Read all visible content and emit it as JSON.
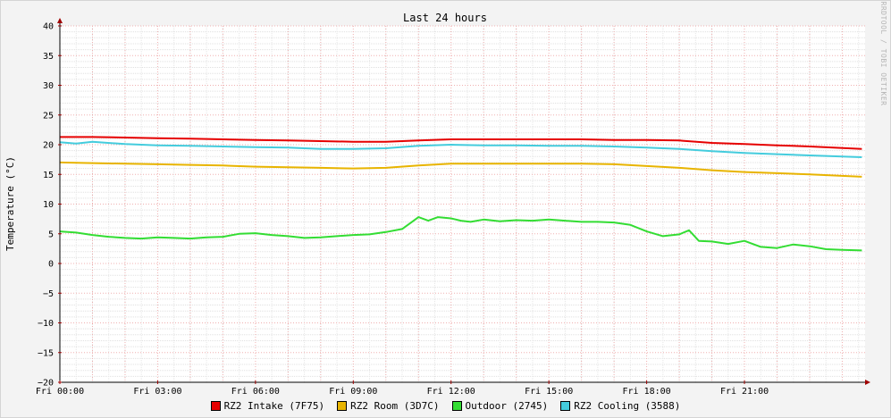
{
  "chart_data": {
    "type": "line",
    "title": "Last 24 hours",
    "ylabel": "Temperature (°C)",
    "watermark": "RRDTOOL / TOBI OETIKER",
    "ylim": [
      -20,
      40
    ],
    "y_ticks": [
      40,
      35,
      30,
      25,
      20,
      15,
      10,
      5,
      0,
      -5,
      -10,
      -15,
      -20
    ],
    "y_tick_labels": [
      "40",
      "35",
      "30",
      "25",
      "20",
      "15",
      "10",
      "5",
      "0",
      "−5",
      "−10",
      "−15",
      "−20"
    ],
    "x_range_hours": [
      0,
      24.7
    ],
    "x_ticks": [
      0,
      3,
      6,
      9,
      12,
      15,
      18,
      21
    ],
    "x_tick_labels": [
      "Fri 00:00",
      "Fri 03:00",
      "Fri 06:00",
      "Fri 09:00",
      "Fri 12:00",
      "Fri 15:00",
      "Fri 18:00",
      "Fri 21:00"
    ],
    "grid": true,
    "legend_position": "bottom",
    "series": [
      {
        "name": "RZ2 Intake (7F75)",
        "color": "#e60000",
        "x": [
          0,
          1,
          2,
          3,
          4,
          5,
          6,
          7,
          8,
          9,
          10,
          11,
          12,
          13,
          14,
          15,
          16,
          17,
          18,
          19,
          20,
          21,
          22,
          23,
          24.6
        ],
        "y": [
          21.3,
          21.3,
          21.2,
          21.1,
          21.0,
          20.9,
          20.8,
          20.7,
          20.6,
          20.5,
          20.5,
          20.7,
          20.9,
          20.9,
          20.9,
          20.9,
          20.9,
          20.8,
          20.8,
          20.7,
          20.3,
          20.1,
          19.9,
          19.7,
          19.3
        ]
      },
      {
        "name": "RZ2 Room (3D7C)",
        "color": "#e8b400",
        "x": [
          0,
          1,
          2,
          3,
          4,
          5,
          6,
          7,
          8,
          9,
          10,
          11,
          12,
          13,
          14,
          15,
          16,
          17,
          18,
          19,
          20,
          21,
          22,
          23,
          24.6
        ],
        "y": [
          17.0,
          16.9,
          16.8,
          16.7,
          16.6,
          16.5,
          16.3,
          16.2,
          16.1,
          16.0,
          16.1,
          16.5,
          16.8,
          16.8,
          16.8,
          16.8,
          16.8,
          16.7,
          16.4,
          16.1,
          15.7,
          15.4,
          15.2,
          15.0,
          14.6
        ]
      },
      {
        "name": "Outdoor (2745)",
        "color": "#33dd33",
        "x": [
          0,
          0.5,
          1,
          1.5,
          2,
          2.5,
          3,
          3.5,
          4,
          4.5,
          5,
          5.5,
          6,
          6.5,
          7,
          7.5,
          8,
          8.5,
          9,
          9.5,
          10,
          10.5,
          10.8,
          11,
          11.3,
          11.6,
          12,
          12.3,
          12.6,
          13,
          13.5,
          14,
          14.5,
          15,
          15.5,
          16,
          16.5,
          17,
          17.5,
          18,
          18.5,
          19,
          19.3,
          19.6,
          20,
          20.5,
          21,
          21.5,
          22,
          22.5,
          23,
          23.5,
          24,
          24.6
        ],
        "y": [
          5.4,
          5.2,
          4.8,
          4.5,
          4.3,
          4.2,
          4.4,
          4.3,
          4.2,
          4.4,
          4.5,
          5.0,
          5.1,
          4.8,
          4.6,
          4.3,
          4.4,
          4.6,
          4.8,
          4.9,
          5.3,
          5.8,
          7.0,
          7.8,
          7.2,
          7.8,
          7.6,
          7.2,
          7.0,
          7.4,
          7.1,
          7.3,
          7.2,
          7.4,
          7.2,
          7.0,
          7.0,
          6.9,
          6.5,
          5.4,
          4.6,
          4.9,
          5.6,
          3.8,
          3.7,
          3.3,
          3.8,
          2.8,
          2.6,
          3.2,
          2.9,
          2.4,
          2.3,
          2.2
        ]
      },
      {
        "name": "RZ2 Cooling (3588)",
        "color": "#44ccdd",
        "x": [
          0,
          0.5,
          1,
          2,
          3,
          4,
          5,
          6,
          7,
          8,
          9,
          10,
          11,
          12,
          13,
          14,
          15,
          16,
          17,
          18,
          19,
          20,
          21,
          22,
          23,
          24.6
        ],
        "y": [
          20.4,
          20.2,
          20.5,
          20.1,
          19.9,
          19.8,
          19.7,
          19.6,
          19.5,
          19.3,
          19.3,
          19.4,
          19.8,
          20.0,
          19.9,
          19.9,
          19.8,
          19.8,
          19.7,
          19.5,
          19.3,
          18.9,
          18.6,
          18.4,
          18.2,
          17.9
        ]
      }
    ]
  }
}
